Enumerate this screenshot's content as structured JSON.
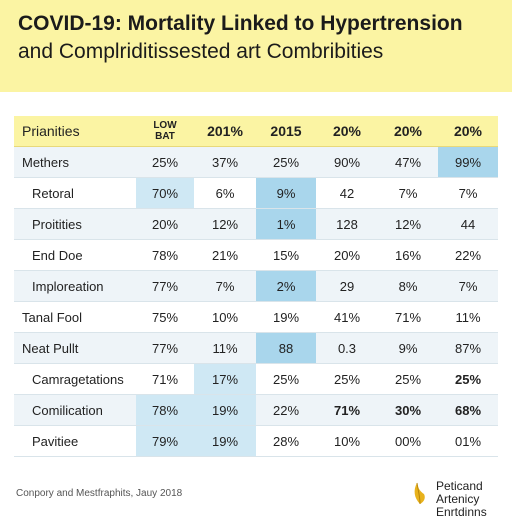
{
  "header": {
    "title_line1": "COVID-19: Mortality Linked to Hypertrension",
    "title_line2": "and Complriditissested art Combribities"
  },
  "table": {
    "head": {
      "label": "Prianities",
      "col1_line1": "LOW",
      "col1_line2": "BAT",
      "cols": [
        "201%",
        "2015",
        "20%",
        "20%",
        "20%"
      ]
    },
    "rows": [
      {
        "label": "Methers",
        "values": [
          "25%",
          "37%",
          "25%",
          "90%",
          "47%",
          "99%"
        ]
      },
      {
        "label": "Retoral",
        "values": [
          "70%",
          "6%",
          "9%",
          "42",
          "7%",
          "7%"
        ]
      },
      {
        "label": "Proitities",
        "values": [
          "20%",
          "12%",
          "1%",
          "128",
          "12%",
          "44"
        ]
      },
      {
        "label": "End Doe",
        "values": [
          "78%",
          "21%",
          "15%",
          "20%",
          "16%",
          "22%"
        ]
      },
      {
        "label": "Imploreation",
        "values": [
          "77%",
          "7%",
          "2%",
          "29",
          "8%",
          "7%"
        ]
      },
      {
        "label": "Tanal Fool",
        "values": [
          "75%",
          "10%",
          "19%",
          "41%",
          "71%",
          "11%"
        ]
      },
      {
        "label": "Neat Pullt",
        "values": [
          "77%",
          "11%",
          "88",
          "0.3",
          "9%",
          "87%"
        ]
      },
      {
        "label": "Camragetations",
        "values": [
          "71%",
          "17%",
          "25%",
          "25%",
          "25%",
          "25%"
        ]
      },
      {
        "label": "Comilication",
        "values": [
          "78%",
          "19%",
          "22%",
          "71%",
          "30%",
          "68%"
        ]
      },
      {
        "label": "Pavitiee",
        "values": [
          "79%",
          "19%",
          "28%",
          "10%",
          "00%",
          "01%"
        ]
      }
    ]
  },
  "footer": {
    "source": "Conpory and Mestfraphits, Jauy 2018",
    "logo_line1": "Peticand",
    "logo_line2": "Artenicy",
    "logo_line3": "Enrtdinns"
  },
  "colors": {
    "header_bg": "#fbf4a3",
    "highlight_blue": "#a9d6ec",
    "row_alt": "#eef4f8",
    "logo_accent": "#e8b21c"
  }
}
